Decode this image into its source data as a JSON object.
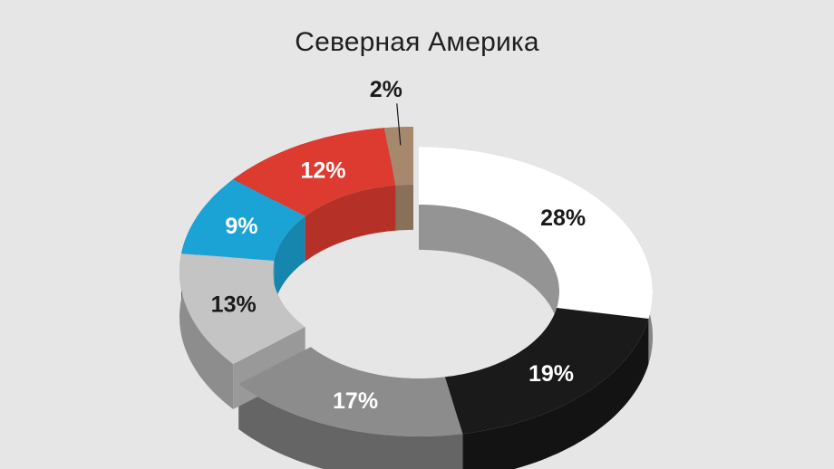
{
  "chart_data": {
    "type": "pie",
    "style": "3d-exploded-donut",
    "title": "Северная Америка",
    "unit": "%",
    "slices": [
      {
        "value": 28,
        "label": "28%",
        "color": "#ffffff",
        "label_color": "#1a1a1a"
      },
      {
        "value": 19,
        "label": "19%",
        "color": "#1a1a1a",
        "label_color": "#ffffff"
      },
      {
        "value": 17,
        "label": "17%",
        "color": "#8c8c8c",
        "label_color": "#ffffff"
      },
      {
        "value": 13,
        "label": "13%",
        "color": "#c4c4c4",
        "label_color": "#1a1a1a"
      },
      {
        "value": 9,
        "label": "9%",
        "color": "#1ba3d6",
        "label_color": "#ffffff"
      },
      {
        "value": 12,
        "label": "12%",
        "color": "#dd3a30",
        "label_color": "#ffffff"
      },
      {
        "value": 2,
        "label": "2%",
        "color": "#a6896c",
        "label_color": "#1a1a1a"
      }
    ]
  }
}
